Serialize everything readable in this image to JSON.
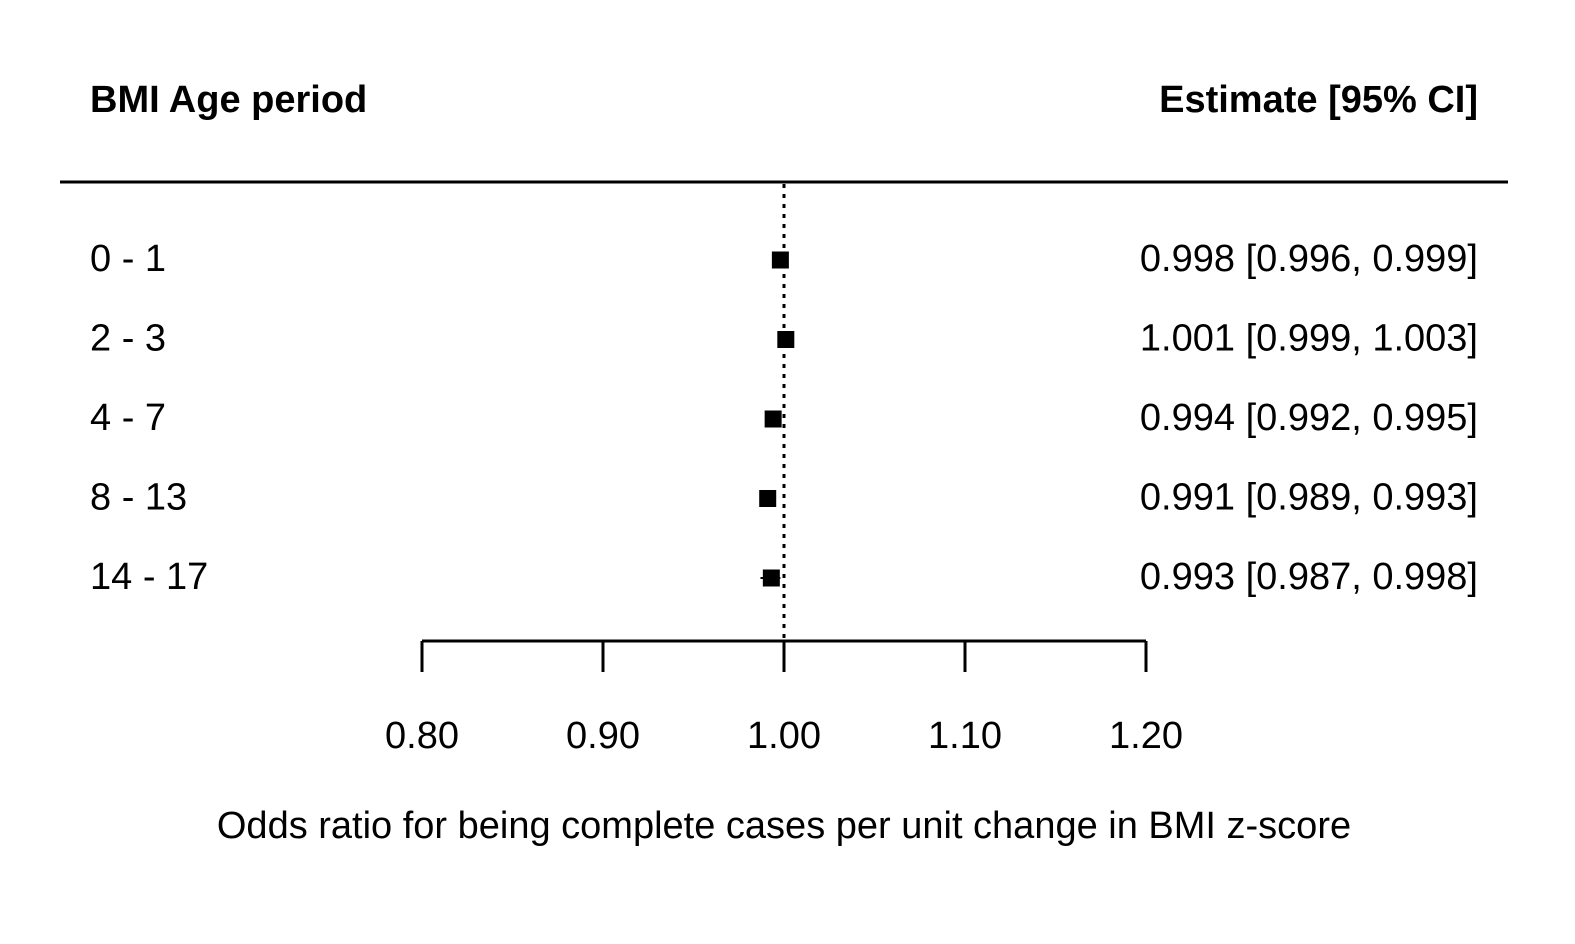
{
  "chart_data": {
    "type": "forest",
    "header_left": "BMI Age period",
    "header_right": "Estimate [95% CI]",
    "rows": [
      {
        "label": "0 - 1",
        "estimate": 0.998,
        "ci_low": 0.996,
        "ci_high": 0.999,
        "text": "0.998 [0.996, 0.999]"
      },
      {
        "label": "2 - 3",
        "estimate": 1.001,
        "ci_low": 0.999,
        "ci_high": 1.003,
        "text": "1.001 [0.999, 1.003]"
      },
      {
        "label": "4 - 7",
        "estimate": 0.994,
        "ci_low": 0.992,
        "ci_high": 0.995,
        "text": "0.994 [0.992, 0.995]"
      },
      {
        "label": "8 - 13",
        "estimate": 0.991,
        "ci_low": 0.989,
        "ci_high": 0.993,
        "text": "0.991 [0.989, 0.993]"
      },
      {
        "label": "14 - 17",
        "estimate": 0.993,
        "ci_low": 0.987,
        "ci_high": 0.998,
        "text": "0.993 [0.987, 0.998]"
      }
    ],
    "reference_line": 1.0,
    "xlim": [
      0.8,
      1.2
    ],
    "xticks": [
      0.8,
      0.9,
      1.0,
      1.1,
      1.2
    ],
    "xtick_labels": [
      "0.80",
      "0.90",
      "1.00",
      "1.10",
      "1.20"
    ],
    "xlabel": "Odds ratio for being complete cases per unit change in BMI z-score"
  }
}
